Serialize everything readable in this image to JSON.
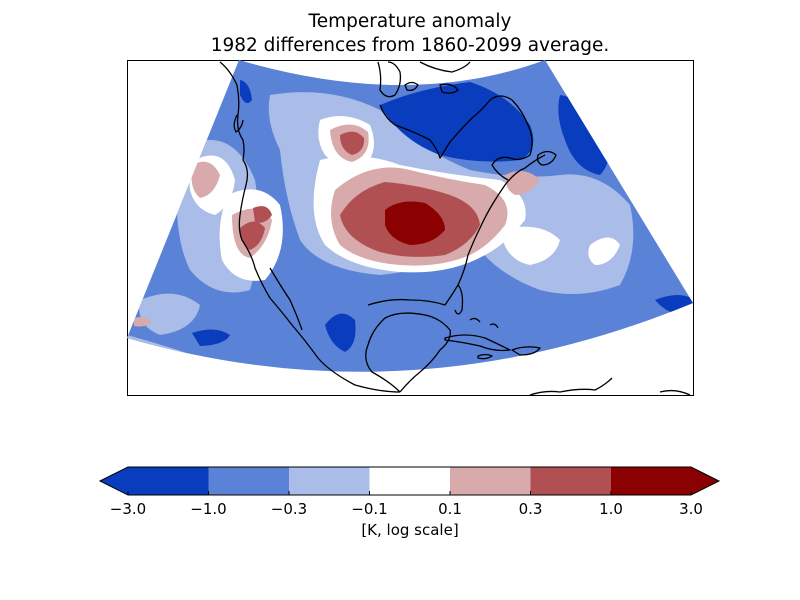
{
  "figure": {
    "title_line1": "Temperature anomaly",
    "title_line2": "1982 differences from 1860-2099 average."
  },
  "colorbar": {
    "unit_label": "[K, log scale]",
    "extend": "both",
    "ticks": [
      "−3.0",
      "−1.0",
      "−0.3",
      "−0.1",
      "0.1",
      "0.3",
      "1.0",
      "3.0"
    ],
    "bins": [
      {
        "range": "-3.0 to -1.0",
        "color": "#0a3cbe"
      },
      {
        "range": "-1.0 to -0.3",
        "color": "#5a82d6"
      },
      {
        "range": "-0.3 to -0.1",
        "color": "#aabce8"
      },
      {
        "range": "-0.1 to 0.1",
        "color": "#ffffff"
      },
      {
        "range": "0.1 to 0.3",
        "color": "#d8aaac"
      },
      {
        "range": "0.3 to 1.0",
        "color": "#b05052"
      },
      {
        "range": "1.0 to 3.0",
        "color": "#8b0000"
      }
    ],
    "under_color": "#0a3cbe",
    "over_color": "#8b0000"
  },
  "map": {
    "region": "North America",
    "projection": "conic",
    "field_colors": {
      "strong_cold": "#0a3cbe",
      "cold": "#5a82d6",
      "cool": "#aabce8",
      "neutral": "#ffffff",
      "warm": "#d8aaac",
      "hot": "#b05052",
      "very_hot": "#8b0000"
    }
  }
}
